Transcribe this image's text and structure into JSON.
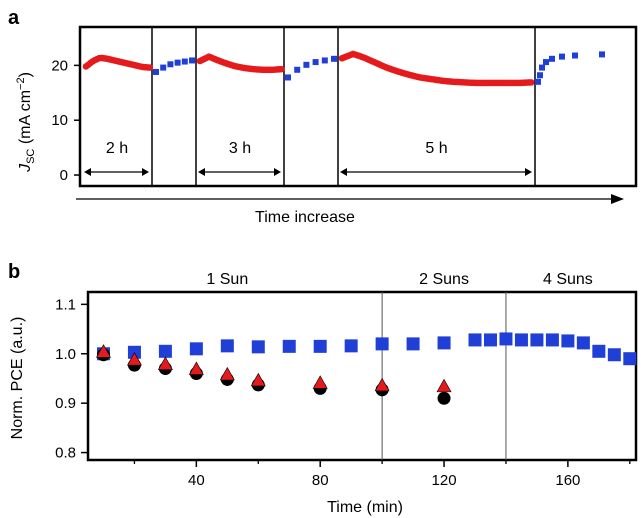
{
  "chart_data": [
    {
      "panel": "a",
      "type": "scatter",
      "ylabel_main": "J",
      "ylabel_sub": "SC",
      "ylabel_unit": " (mA cm",
      "ylabel_sup": "−2",
      "ylabel_close": ")",
      "yticks": [
        "0",
        "10",
        "20"
      ],
      "ylim": [
        -2,
        27
      ],
      "xlabel": "Time increase",
      "segments": [
        {
          "label": "2 h"
        },
        {
          "label": ""
        },
        {
          "label": "3 h"
        },
        {
          "label": ""
        },
        {
          "label": "5 h"
        },
        {
          "label": ""
        }
      ],
      "series": [
        {
          "color": "#e41a1c",
          "marker": "circle"
        },
        {
          "color": "#1f3fd6",
          "marker": "square"
        }
      ],
      "dark_series": [
        {
          "segment": 0,
          "y": [
            19.8,
            20.8,
            21.4,
            21.2,
            20.9,
            20.6,
            20.3,
            20.0,
            19.7,
            19.6
          ]
        },
        {
          "segment": 2,
          "y": [
            20.8,
            21.6,
            20.9,
            20.3,
            19.8,
            19.5,
            19.3,
            19.2,
            19.2,
            19.3
          ]
        },
        {
          "segment": 4,
          "y": [
            21.3,
            22.1,
            21.4,
            20.5,
            19.6,
            18.9,
            18.3,
            17.8,
            17.5,
            17.2,
            17.0,
            16.9,
            16.8,
            16.8,
            16.8,
            16.8,
            16.8,
            16.9
          ]
        }
      ],
      "light_series": [
        {
          "segment": 1,
          "y": [
            18.8,
            19.6,
            20.2,
            20.5,
            20.7,
            20.9
          ]
        },
        {
          "segment": 3,
          "y": [
            17.8,
            19.2,
            20.1,
            20.6,
            20.9,
            21.2
          ]
        },
        {
          "segment": 5,
          "y": [
            17.0,
            18.2,
            19.6,
            20.6,
            21.2,
            21.6,
            21.8,
            22.0
          ]
        }
      ]
    },
    {
      "panel": "b",
      "type": "scatter",
      "xlabel": "Time (min)",
      "ylabel": "Norm. PCE (a.u.)",
      "xlim": [
        5,
        182
      ],
      "ylim": [
        0.785,
        1.125
      ],
      "xticks": [
        40,
        80,
        120,
        160
      ],
      "xminorticks": [
        20,
        60,
        100,
        140,
        180
      ],
      "yticks": [
        0.8,
        0.9,
        1.0,
        1.1
      ],
      "ytick_labels": [
        "0.8",
        "0.9",
        "1.0",
        "1.1"
      ],
      "dividers": [
        100,
        140
      ],
      "regions": [
        {
          "label": "1 Sun",
          "x": 50
        },
        {
          "label": "2 Suns",
          "x": 120
        },
        {
          "label": "4 Suns",
          "x": 160
        }
      ],
      "series": [
        {
          "marker": "square",
          "color": "#1f3fd6",
          "x": [
            10,
            20,
            30,
            40,
            50,
            60,
            70,
            80,
            90,
            100,
            110,
            120,
            130,
            135,
            140,
            145,
            150,
            155,
            160,
            165,
            170,
            175,
            180
          ],
          "y": [
            1.0,
            1.003,
            1.005,
            1.01,
            1.016,
            1.014,
            1.015,
            1.015,
            1.016,
            1.02,
            1.02,
            1.022,
            1.028,
            1.028,
            1.03,
            1.028,
            1.028,
            1.028,
            1.026,
            1.022,
            1.005,
            0.998,
            0.99
          ]
        },
        {
          "marker": "circle",
          "color": "#000000",
          "x": [
            10,
            20,
            30,
            40,
            50,
            60,
            80,
            100,
            120
          ],
          "y": [
            0.998,
            0.977,
            0.97,
            0.96,
            0.948,
            0.937,
            0.93,
            0.927,
            0.91
          ]
        },
        {
          "marker": "triangle",
          "color": "#e41a1c",
          "x": [
            10,
            20,
            30,
            40,
            50,
            60,
            80,
            100,
            120
          ],
          "y": [
            1.003,
            0.987,
            0.978,
            0.968,
            0.957,
            0.945,
            0.94,
            0.935,
            0.933
          ]
        }
      ]
    }
  ]
}
